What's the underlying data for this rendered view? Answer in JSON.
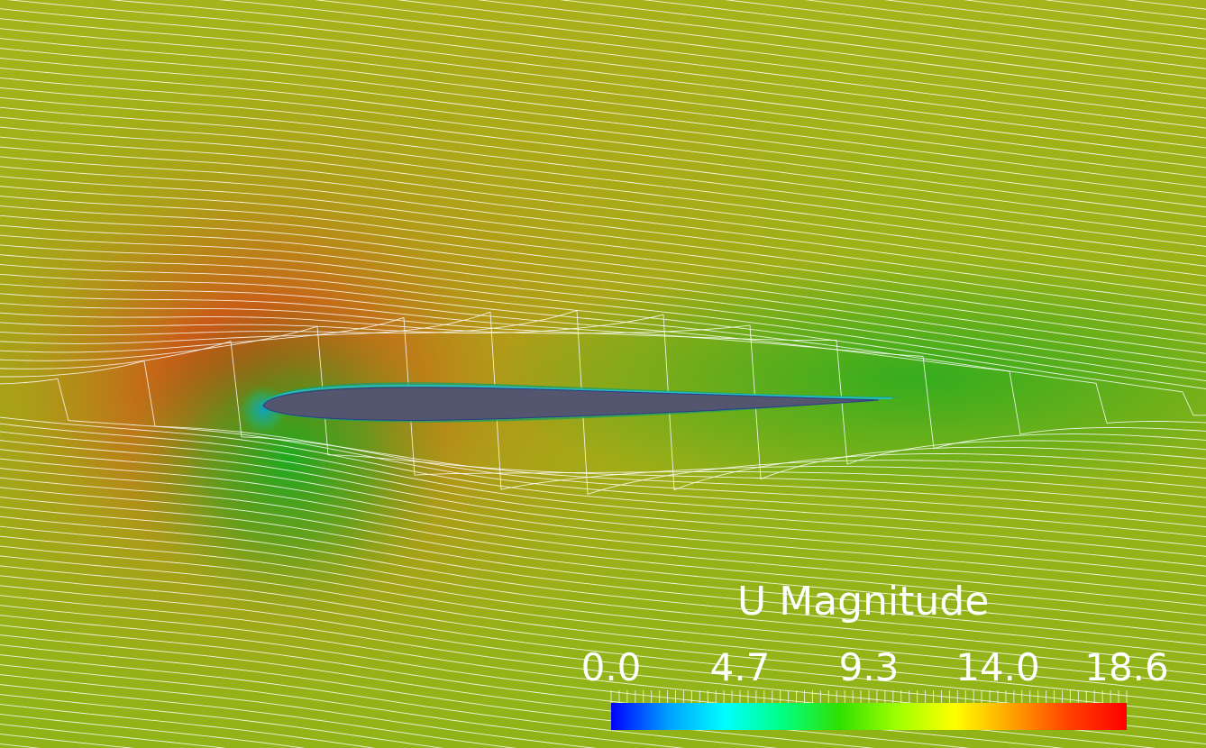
{
  "scene": {
    "field_name": "U",
    "background_color": "#95b416",
    "airfoil_color": "#53566e",
    "streamline_color": "#ffffff",
    "colormap": [
      "#0000ff",
      "#00a0ff",
      "#00ffff",
      "#00ff80",
      "#30e000",
      "#a0ff00",
      "#ffff00",
      "#ffa000",
      "#ff4000",
      "#ff0000"
    ]
  },
  "legend": {
    "title": "U Magnitude",
    "range": [
      0.0,
      18.6
    ],
    "ticks": [
      {
        "value": 0.0,
        "label": "0.0"
      },
      {
        "value": 4.65,
        "label": "4.7"
      },
      {
        "value": 9.3,
        "label": "9.3"
      },
      {
        "value": 13.95,
        "label": "14.0"
      },
      {
        "value": 18.6,
        "label": "18.6"
      }
    ]
  }
}
